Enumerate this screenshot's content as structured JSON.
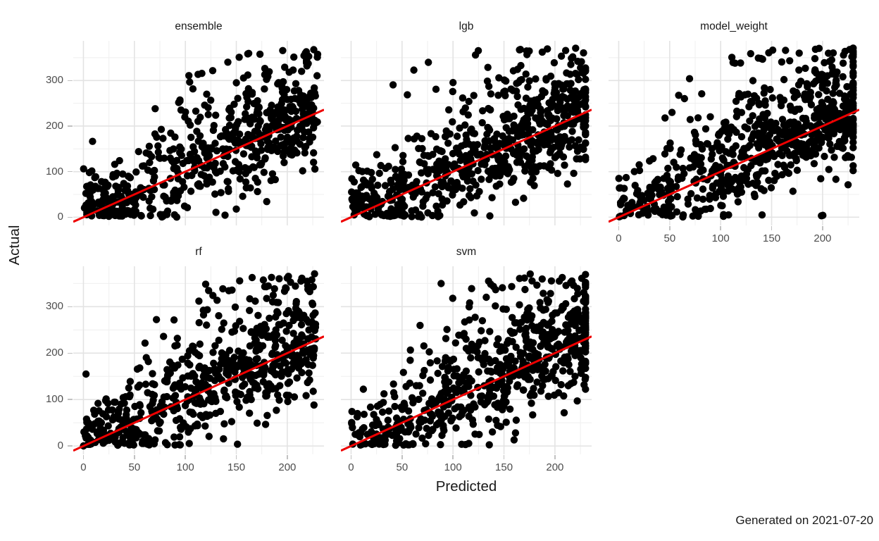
{
  "caption": "Generated on 2021-07-20",
  "chart_data": {
    "type": "scatter",
    "title": "",
    "xlabel": "Predicted",
    "ylabel": "Actual",
    "facet_layout": "wrap, 3 columns x 2 rows, last cell empty",
    "x_ticks": [
      0,
      50,
      100,
      150,
      200
    ],
    "y_ticks": [
      0,
      100,
      200,
      300
    ],
    "x_minor": [
      25,
      75,
      125,
      175,
      225
    ],
    "y_minor": [
      50,
      150,
      250,
      350
    ],
    "xlim": [
      -10,
      236
    ],
    "ylim": [
      -18,
      387
    ],
    "grid": "major+minor, light grey on white, no panel border",
    "legend": "none",
    "reference_line": {
      "type": "abline",
      "intercept": 0,
      "slope": 1,
      "color": "#ee0000",
      "stroke_width": 3
    },
    "point_style": {
      "color": "#000000",
      "radius": 5.2,
      "opacity": 1
    },
    "colors": {
      "background": "#ffffff",
      "grid_major": "#e3e3e3",
      "grid_minor": "#efefef",
      "tick_text": "#4d4d4d",
      "tick_mark": "#c2c2c2",
      "title_text": "#1a1a1a",
      "line_red": "#ee0000",
      "point_black": "#000000"
    },
    "facets": [
      {
        "label": "ensemble",
        "gen": {
          "seed": 101,
          "n": 620,
          "x_shift": -4,
          "noise": 56,
          "left_frac": 0.17
        }
      },
      {
        "label": "lgb",
        "gen": {
          "seed": 202,
          "n": 700,
          "x_shift": 0,
          "noise": 58,
          "left_frac": 0.17
        }
      },
      {
        "label": "model_weight",
        "gen": {
          "seed": 303,
          "n": 700,
          "x_shift": 6,
          "noise": 58,
          "left_frac": 0.15
        }
      },
      {
        "label": "rf",
        "gen": {
          "seed": 404,
          "n": 640,
          "x_shift": -6,
          "noise": 55,
          "left_frac": 0.18
        }
      },
      {
        "label": "svm",
        "gen": {
          "seed": 505,
          "n": 660,
          "x_shift": 8,
          "noise": 62,
          "left_frac": 0.15
        }
      }
    ],
    "points_note": "Each facet shows ~650 heavily overlapping black points of Actual (0-372) vs Predicted (0-231) with a red identity line y=x; dense mass around Predicted 80-200 / Actual 30-220, dense band at Actual~0 out to Predicted~160, sparse left cluster at low Predicted, and high-Actual outliers up to ~370. Points are procedurally sampled from this depicted distribution using the per-facet gen parameters."
  }
}
